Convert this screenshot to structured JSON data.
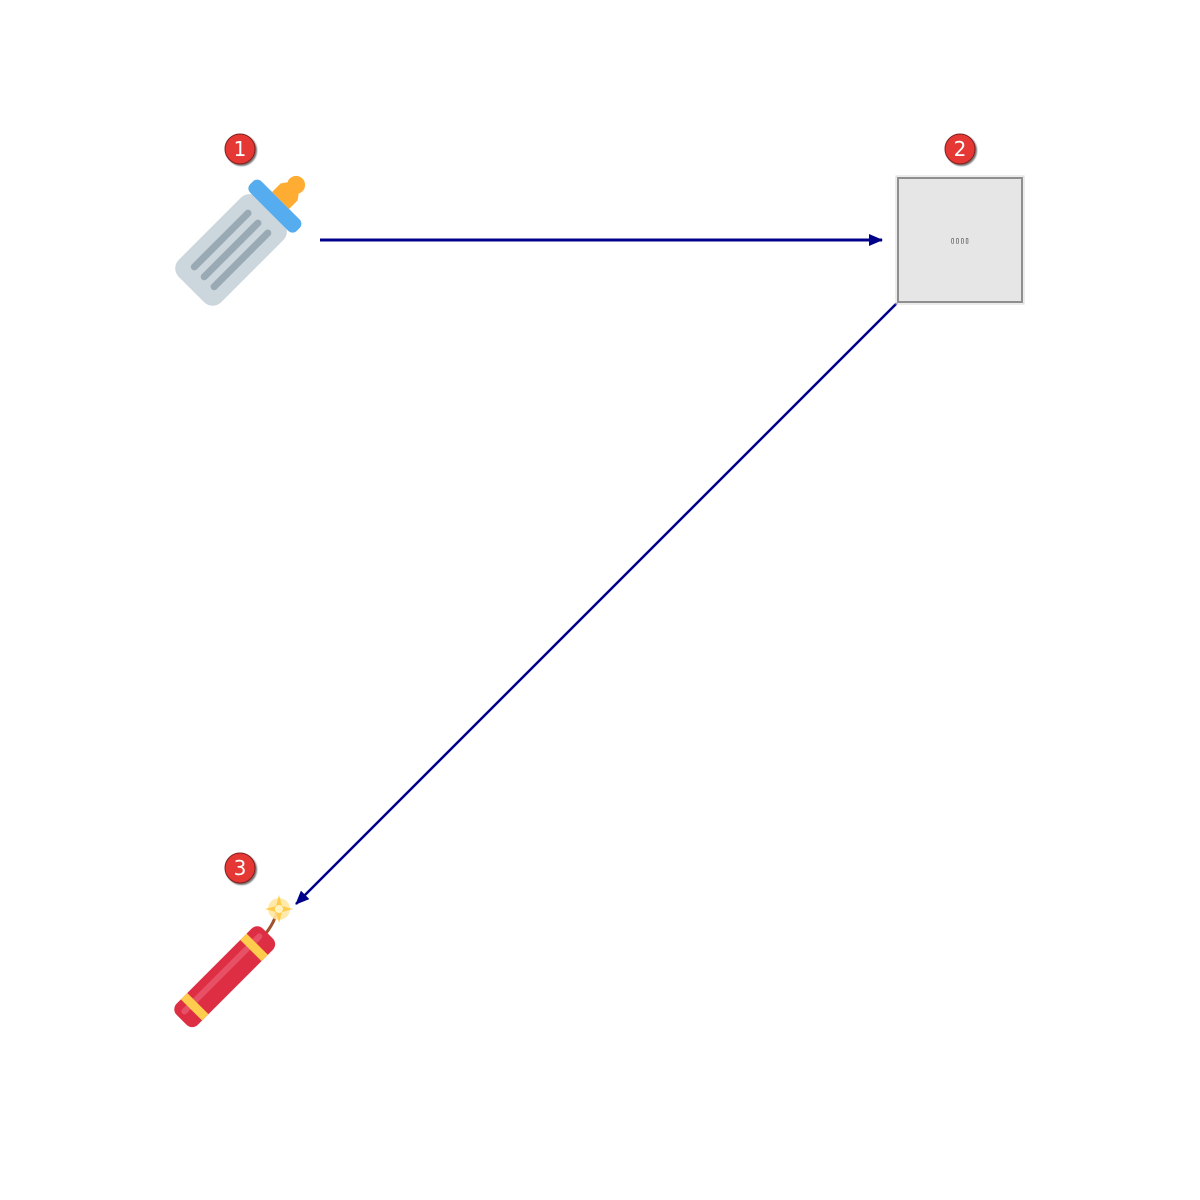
{
  "colors": {
    "arrow": "#00008b",
    "badge_fill": "#e53935",
    "badge_stroke": "#7f1d1d",
    "box_fill": "#e6e6e6",
    "box_stroke": "#8f8f8f"
  },
  "nodes": [
    {
      "id": "1",
      "badge": "1",
      "icon": "baby-bottle-icon"
    },
    {
      "id": "2",
      "badge": "2",
      "icon": "placeholder-box",
      "glyph_text": "▯▯▯▯"
    },
    {
      "id": "3",
      "badge": "3",
      "icon": "firecracker-icon"
    }
  ],
  "edges": [
    {
      "from": "1",
      "to": "2"
    },
    {
      "from": "2",
      "to": "3"
    }
  ]
}
